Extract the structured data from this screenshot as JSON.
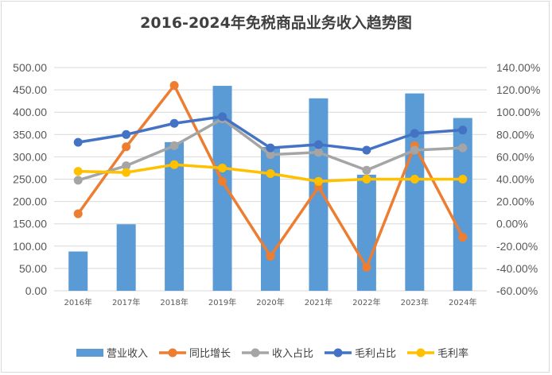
{
  "chart_data": {
    "type": "bar",
    "title": "2016-2024年免税商品业务收入趋势图",
    "categories": [
      "2016年",
      "2017年",
      "2018年",
      "2019年",
      "2020年",
      "2021年",
      "2022年",
      "2023年",
      "2024年"
    ],
    "y_left": {
      "ylim": [
        0,
        500
      ],
      "ticks": [
        "0.00",
        "50.00",
        "100.00",
        "150.00",
        "200.00",
        "250.00",
        "300.00",
        "350.00",
        "400.00",
        "450.00",
        "500.00"
      ]
    },
    "y_right": {
      "ylim": [
        -0.6,
        1.4
      ],
      "ticks": [
        "-60.00%",
        "-40.00%",
        "-20.00%",
        "0.00%",
        "20.00%",
        "40.00%",
        "60.00%",
        "80.00%",
        "100.00%",
        "120.00%",
        "140.00%"
      ]
    },
    "series": [
      {
        "name": "营业收入",
        "type": "bar",
        "axis": "left",
        "color": "#5b9bd5",
        "values": [
          88,
          149,
          333,
          459,
          322,
          431,
          260,
          442,
          387
        ]
      },
      {
        "name": "同比增长",
        "type": "line",
        "axis": "right",
        "color": "#ed7d31",
        "values": [
          0.09,
          0.69,
          1.24,
          0.38,
          -0.29,
          0.33,
          -0.39,
          0.7,
          -0.12
        ]
      },
      {
        "name": "收入占比",
        "type": "line",
        "axis": "right",
        "color": "#a5a5a5",
        "values": [
          0.39,
          0.52,
          0.7,
          0.94,
          0.62,
          0.64,
          0.48,
          0.66,
          0.68
        ]
      },
      {
        "name": "毛利占比",
        "type": "line",
        "axis": "right",
        "color": "#4472c4",
        "values": [
          0.73,
          0.8,
          0.9,
          0.96,
          0.68,
          0.71,
          0.66,
          0.81,
          0.84
        ]
      },
      {
        "name": "毛利率",
        "type": "line",
        "axis": "right",
        "color": "#ffc000",
        "values": [
          0.47,
          0.46,
          0.53,
          0.5,
          0.45,
          0.38,
          0.4,
          0.4,
          0.4
        ]
      }
    ],
    "grid": true,
    "legend_position": "bottom"
  }
}
